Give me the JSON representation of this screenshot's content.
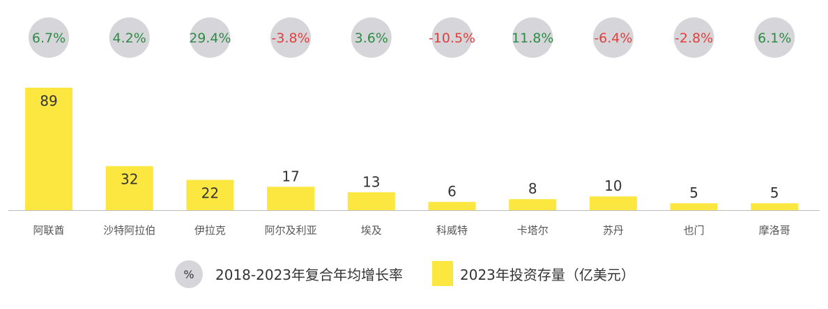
{
  "chart_data": {
    "type": "bar",
    "categories": [
      "阿联酋",
      "沙特阿拉伯",
      "伊拉克",
      "阿尔及利亚",
      "埃及",
      "科威特",
      "卡塔尔",
      "苏丹",
      "也门",
      "摩洛哥"
    ],
    "series": [
      {
        "name": "2023年投资存量（亿美元）",
        "values": [
          89,
          32,
          22,
          17,
          13,
          6,
          8,
          10,
          5,
          5
        ]
      }
    ],
    "growth": {
      "name": "2018-2023年复合年均增长率",
      "labels": [
        "6.7%",
        "4.2%",
        "29.4%",
        "-3.8%",
        "3.6%",
        "-10.5%",
        "11.8%",
        "-6.4%",
        "-2.8%",
        "6.1%"
      ],
      "values": [
        6.7,
        4.2,
        29.4,
        -3.8,
        3.6,
        -10.5,
        11.8,
        -6.4,
        -2.8,
        6.1
      ]
    },
    "ylim": [
      0,
      89
    ],
    "grid": false,
    "legend_position": "bottom-center"
  },
  "legend": {
    "circle_symbol": "%",
    "circle_label": "2018-2023年复合年均增长率",
    "bar_label": "2023年投资存量（亿美元）"
  },
  "colors": {
    "bar": "#FCE640",
    "circle": "#D5D5DA",
    "positive": "#2E8B45",
    "negative": "#E0403C",
    "axis": "#BBBBBB"
  }
}
